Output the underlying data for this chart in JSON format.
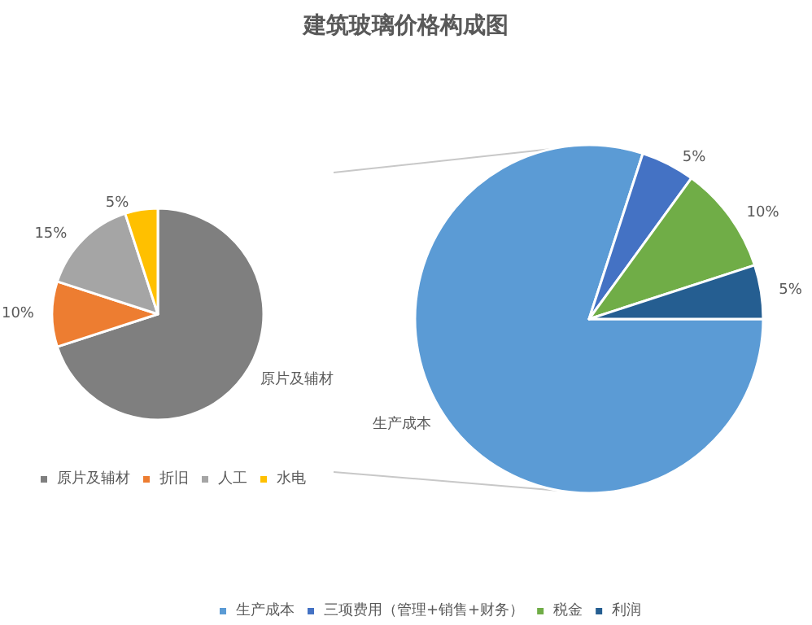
{
  "chart_data": [
    {
      "type": "pie",
      "title": "建筑玻璃价格构成图",
      "categories": [
        "原片及辅材",
        "折旧",
        "人工",
        "水电"
      ],
      "values": [
        70,
        10,
        15,
        5
      ],
      "colors": [
        "#7f7f7f",
        "#ed7d31",
        "#a5a5a5",
        "#ffc000"
      ],
      "value_labels": [
        "原片及辅材",
        "10%",
        "15%",
        "5%"
      ],
      "legend": "bottom"
    },
    {
      "type": "pie",
      "categories": [
        "生产成本",
        "三项费用（管理+销售+财务）",
        "税金",
        "利润"
      ],
      "values": [
        80,
        5,
        10,
        5
      ],
      "colors": [
        "#5b9bd5",
        "#4472c4",
        "#70ad47",
        "#255e91"
      ],
      "value_labels": [
        "生产成本",
        "5%",
        "10%",
        "5%"
      ],
      "legend": "bottom"
    }
  ]
}
